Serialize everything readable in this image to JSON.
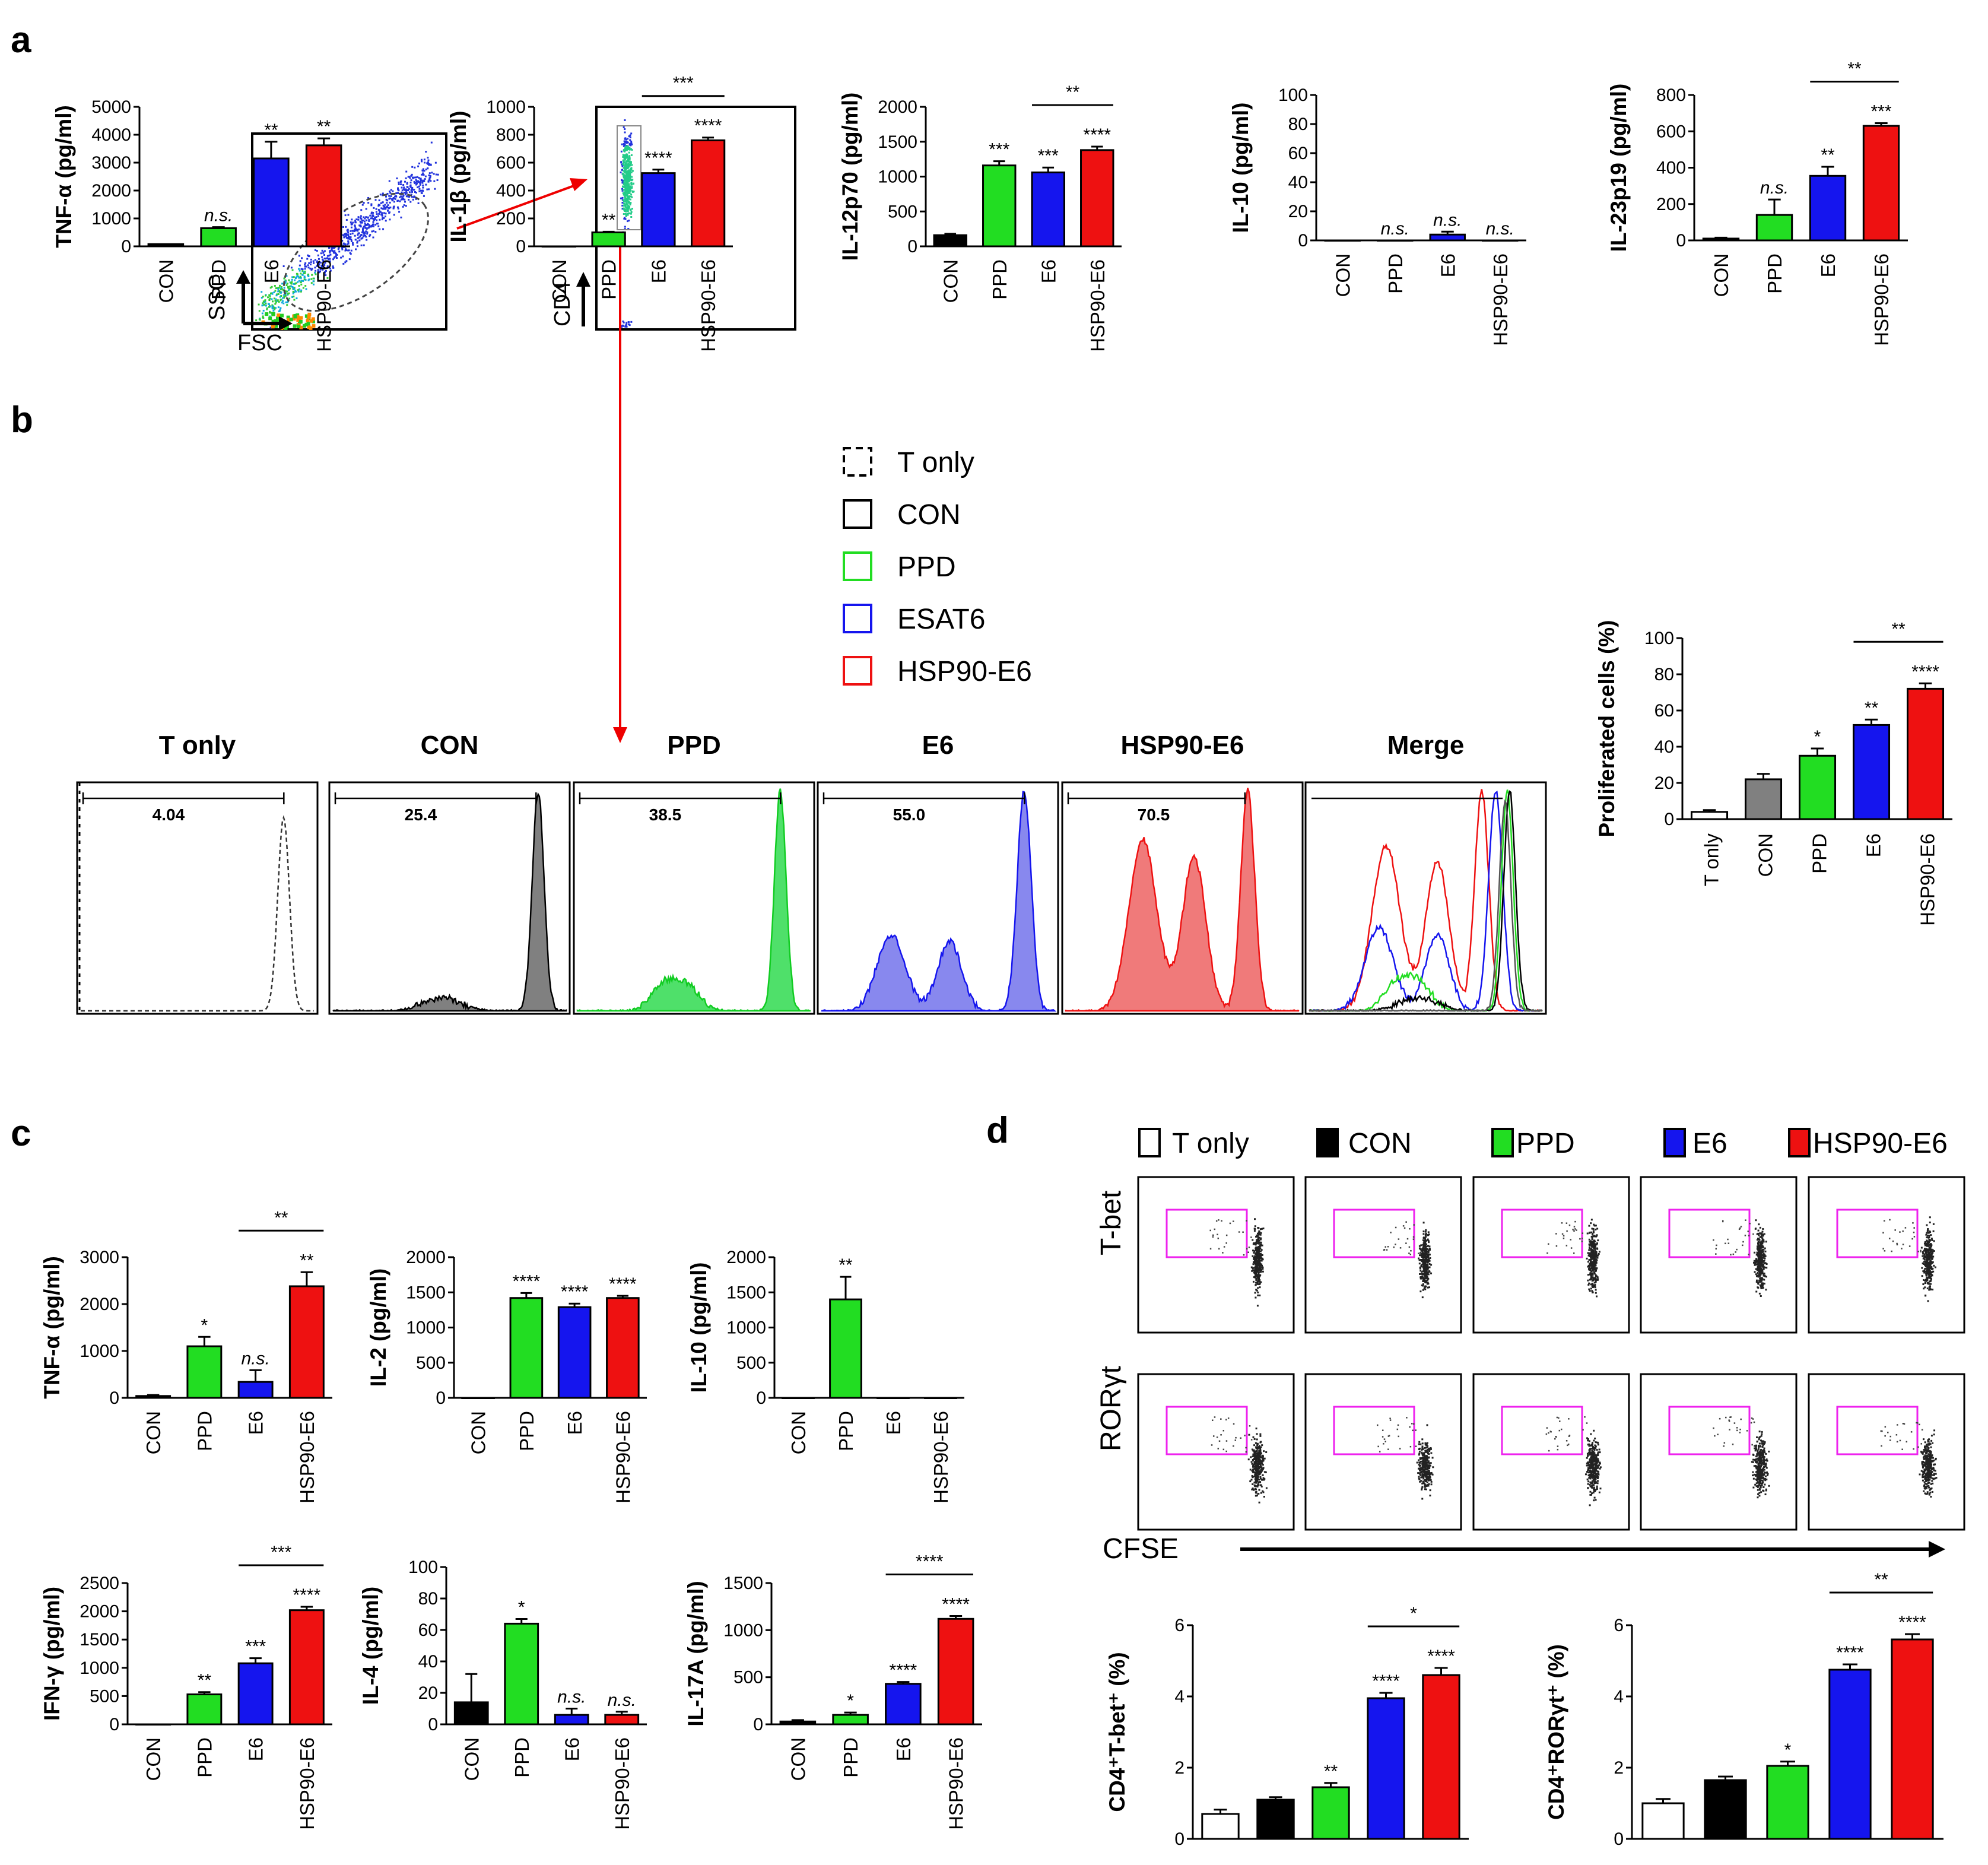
{
  "panels": {
    "a": "a",
    "b": "b",
    "c": "c",
    "d": "d"
  },
  "colors": {
    "CON": "#000000",
    "PPD": "#22dd22",
    "E6": "#1515ee",
    "HSP90-E6": "#ee1111",
    "T only": "#ffffff",
    "CON_gray": "#808080"
  },
  "chart_data": [
    {
      "id": "a1",
      "type": "bar",
      "categories": [
        "CON",
        "PPD",
        "E6",
        "HSP90-E6"
      ],
      "values": [
        80,
        650,
        3150,
        3620
      ],
      "errors": [
        0,
        40,
        600,
        250
      ],
      "ylabel": "TNF-α (pg/ml)",
      "ylim": [
        0,
        5000
      ],
      "yticks": [
        0,
        1000,
        2000,
        3000,
        4000,
        5000
      ],
      "sig": [
        "",
        "n.s.",
        "**",
        "**"
      ],
      "brackets": []
    },
    {
      "id": "a2",
      "type": "bar",
      "categories": [
        "CON",
        "PPD",
        "E6",
        "HSP90-E6"
      ],
      "values": [
        0,
        100,
        525,
        760
      ],
      "errors": [
        0,
        5,
        25,
        20
      ],
      "ylabel": "IL-1β (pg/ml)",
      "ylim": [
        0,
        1000
      ],
      "yticks": [
        0,
        200,
        400,
        600,
        800,
        1000
      ],
      "sig": [
        "",
        "**",
        "****",
        "****"
      ],
      "brackets": [
        {
          "from": 2,
          "to": 3,
          "label": "***"
        }
      ]
    },
    {
      "id": "a3",
      "type": "bar",
      "categories": [
        "CON",
        "PPD",
        "E6",
        "HSP90-E6"
      ],
      "values": [
        160,
        1160,
        1060,
        1380
      ],
      "errors": [
        20,
        60,
        70,
        50
      ],
      "ylabel": "IL-12p70 (pg/ml)",
      "ylim": [
        0,
        2000
      ],
      "yticks": [
        0,
        500,
        1000,
        1500,
        2000
      ],
      "sig": [
        "",
        "***",
        "***",
        "****"
      ],
      "brackets": [
        {
          "from": 2,
          "to": 3,
          "label": "**"
        }
      ]
    },
    {
      "id": "a4",
      "type": "bar",
      "categories": [
        "CON",
        "PPD",
        "E6",
        "HSP90-E6"
      ],
      "values": [
        0,
        0,
        4,
        0
      ],
      "errors": [
        0,
        0,
        2,
        0
      ],
      "ylabel": "IL-10 (pg/ml)",
      "ylim": [
        0,
        100
      ],
      "yticks": [
        0,
        20,
        40,
        60,
        80,
        100
      ],
      "sig": [
        "",
        "n.s.",
        "n.s.",
        "n.s."
      ],
      "brackets": []
    },
    {
      "id": "a5",
      "type": "bar",
      "categories": [
        "CON",
        "PPD",
        "E6",
        "HSP90-E6"
      ],
      "values": [
        10,
        140,
        355,
        630
      ],
      "errors": [
        5,
        85,
        50,
        15
      ],
      "ylabel": "IL-23p19 (pg/ml)",
      "ylim": [
        0,
        800
      ],
      "yticks": [
        0,
        200,
        400,
        600,
        800
      ],
      "sig": [
        "",
        "n.s.",
        "**",
        "***"
      ],
      "brackets": [
        {
          "from": 2,
          "to": 3,
          "label": "**"
        }
      ]
    },
    {
      "id": "b1",
      "type": "bar",
      "categories": [
        "T only",
        "CON",
        "PPD",
        "E6",
        "HSP90-E6"
      ],
      "values": [
        4,
        22,
        35,
        52,
        72
      ],
      "errors": [
        1,
        3,
        4,
        3,
        3
      ],
      "ylabel": "Proliferated cells (%)",
      "ylim": [
        0,
        100
      ],
      "yticks": [
        0,
        20,
        40,
        60,
        80,
        100
      ],
      "sig": [
        "",
        "",
        "*",
        "**",
        "****"
      ],
      "brackets": [
        {
          "from": 3,
          "to": 4,
          "label": "**"
        }
      ]
    },
    {
      "id": "c1",
      "type": "bar",
      "categories": [
        "CON",
        "PPD",
        "E6",
        "HSP90-E6"
      ],
      "values": [
        40,
        1100,
        340,
        2380
      ],
      "errors": [
        20,
        200,
        250,
        300
      ],
      "ylabel": "TNF-α (pg/ml)",
      "ylim": [
        0,
        3000
      ],
      "yticks": [
        0,
        1000,
        2000,
        3000
      ],
      "sig": [
        "",
        "*",
        "n.s.",
        "**"
      ],
      "brackets": [
        {
          "from": 2,
          "to": 3,
          "label": "**"
        }
      ]
    },
    {
      "id": "c2",
      "type": "bar",
      "categories": [
        "CON",
        "PPD",
        "E6",
        "HSP90-E6"
      ],
      "values": [
        0,
        1420,
        1290,
        1420
      ],
      "errors": [
        0,
        70,
        50,
        30
      ],
      "ylabel": "IL-2 (pg/ml)",
      "ylim": [
        0,
        2000
      ],
      "yticks": [
        0,
        500,
        1000,
        1500,
        2000
      ],
      "sig": [
        "",
        "****",
        "****",
        "****"
      ],
      "brackets": []
    },
    {
      "id": "c3",
      "type": "bar",
      "categories": [
        "CON",
        "PPD",
        "E6",
        "HSP90-E6"
      ],
      "values": [
        0,
        1400,
        0,
        0
      ],
      "errors": [
        0,
        320,
        0,
        0
      ],
      "ylabel": "IL-10 (pg/ml)",
      "ylim": [
        0,
        2000
      ],
      "yticks": [
        0,
        500,
        1000,
        1500,
        2000
      ],
      "sig": [
        "",
        "**",
        "",
        ""
      ],
      "brackets": []
    },
    {
      "id": "c4",
      "type": "bar",
      "categories": [
        "CON",
        "PPD",
        "E6",
        "HSP90-E6"
      ],
      "values": [
        0,
        530,
        1080,
        2020
      ],
      "errors": [
        0,
        40,
        90,
        60
      ],
      "ylabel": "IFN-γ (pg/ml)",
      "ylim": [
        0,
        2500
      ],
      "yticks": [
        0,
        500,
        1000,
        1500,
        2000,
        2500
      ],
      "sig": [
        "",
        "**",
        "***",
        "****"
      ],
      "brackets": [
        {
          "from": 2,
          "to": 3,
          "label": "***"
        }
      ]
    },
    {
      "id": "c5",
      "type": "bar",
      "categories": [
        "CON",
        "PPD",
        "E6",
        "HSP90-E6"
      ],
      "values": [
        14,
        64,
        6,
        6
      ],
      "errors": [
        18,
        3,
        4,
        2
      ],
      "ylabel": "IL-4 (pg/ml)",
      "ylim": [
        0,
        100
      ],
      "yticks": [
        0,
        20,
        40,
        60,
        80,
        100
      ],
      "sig": [
        "",
        "*",
        "n.s.",
        "n.s."
      ],
      "brackets": []
    },
    {
      "id": "c6",
      "type": "bar",
      "categories": [
        "CON",
        "PPD",
        "E6",
        "HSP90-E6"
      ],
      "values": [
        30,
        100,
        430,
        1120
      ],
      "errors": [
        15,
        25,
        20,
        30
      ],
      "ylabel": "IL-17A (pg/ml)",
      "ylim": [
        0,
        1500
      ],
      "yticks": [
        0,
        500,
        1000,
        1500
      ],
      "sig": [
        "",
        "*",
        "****",
        "****"
      ],
      "brackets": [
        {
          "from": 2,
          "to": 3,
          "label": "****"
        }
      ]
    },
    {
      "id": "d1",
      "type": "bar",
      "categories": [
        "T only",
        "CON",
        "PPD",
        "E6",
        "HSP90-E6"
      ],
      "values": [
        0.7,
        1.1,
        1.45,
        3.95,
        4.6
      ],
      "errors": [
        0.12,
        0.07,
        0.12,
        0.15,
        0.2
      ],
      "ylabel": "CD4⁺T-bet⁺ (%)",
      "ylim": [
        0,
        6
      ],
      "yticks": [
        0,
        2,
        4,
        6
      ],
      "sig": [
        "",
        "",
        "**",
        "****",
        "****"
      ],
      "brackets": [
        {
          "from": 3,
          "to": 4,
          "label": "*"
        }
      ]
    },
    {
      "id": "d2",
      "type": "bar",
      "categories": [
        "T only",
        "CON",
        "PPD",
        "E6",
        "HSP90-E6"
      ],
      "values": [
        1.0,
        1.65,
        2.05,
        4.75,
        5.6
      ],
      "errors": [
        0.12,
        0.1,
        0.12,
        0.15,
        0.15
      ],
      "ylabel": "CD4⁺RORγt⁺ (%)",
      "ylim": [
        0,
        6
      ],
      "yticks": [
        0,
        2,
        4,
        6
      ],
      "sig": [
        "",
        "",
        "*",
        "****",
        "****"
      ],
      "brackets": [
        {
          "from": 3,
          "to": 4,
          "label": "**"
        }
      ]
    }
  ],
  "flow": {
    "ssc": "SSC",
    "fsc": "FSC",
    "cd4": "CD4",
    "legend": [
      "T only",
      "CON",
      "PPD",
      "ESAT6",
      "HSP90-E6"
    ],
    "histograms": [
      {
        "title": "T only",
        "value": "4.04"
      },
      {
        "title": "CON",
        "value": "25.4"
      },
      {
        "title": "PPD",
        "value": "38.5"
      },
      {
        "title": "E6",
        "value": "55.0"
      },
      {
        "title": "HSP90-E6",
        "value": "70.5"
      },
      {
        "title": "Merge",
        "value": ""
      }
    ]
  },
  "panel_d": {
    "legend": [
      "T only",
      "CON",
      "PPD",
      "E6",
      "HSP90-E6"
    ],
    "rows": [
      "T-bet",
      "RORγt"
    ],
    "cfse": "CFSE"
  }
}
